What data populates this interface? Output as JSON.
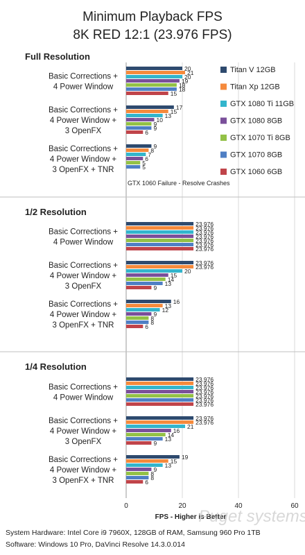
{
  "chart_data": {
    "type": "bar",
    "orientation": "horizontal",
    "title": "Minimum Playback FPS",
    "subtitle": "8K RED 12:1 (23.976 FPS)",
    "xlabel": "FPS - Higher is Better",
    "xlim": [
      0,
      60
    ],
    "xticks": [
      "0",
      "20",
      "40",
      "60"
    ],
    "grid": "vertical",
    "legend_position": "right",
    "series": [
      {
        "name": "Titan V 12GB",
        "color": "#2e4a6e"
      },
      {
        "name": "Titan Xp 12GB",
        "color": "#f58a3c"
      },
      {
        "name": "GTX 1080 Ti 11GB",
        "color": "#33b5cc"
      },
      {
        "name": "GTX 1080 8GB",
        "color": "#7a4f9a"
      },
      {
        "name": "GTX 1070 Ti 8GB",
        "color": "#93c147"
      },
      {
        "name": "GTX 1070 8GB",
        "color": "#4f7fc4"
      },
      {
        "name": "GTX 1060 6GB",
        "color": "#c0444a"
      }
    ],
    "panels": [
      {
        "title": "Full Resolution",
        "note": "GTX 1060 Failure - Resolve Crashes",
        "groups": [
          {
            "label": [
              "Basic Corrections +",
              "4 Power Window"
            ],
            "values": [
              20,
              21,
              20,
              19,
              18,
              18,
              15
            ]
          },
          {
            "label": [
              "Basic Corrections +",
              "4 Power Window +",
              "3 OpenFX"
            ],
            "values": [
              17,
              15,
              13,
              10,
              9,
              9,
              6
            ]
          },
          {
            "label": [
              "Basic Corrections +",
              "4 Power Window +",
              "3 OpenFX + TNR"
            ],
            "values": [
              9,
              8,
              7,
              6,
              5,
              5,
              0
            ]
          }
        ]
      },
      {
        "title": "1/2 Resolution",
        "groups": [
          {
            "label": [
              "Basic Corrections +",
              "4 Power Window"
            ],
            "values": [
              23.976,
              23.976,
              23.976,
              23.976,
              23.976,
              23.976,
              23.976
            ]
          },
          {
            "label": [
              "Basic Corrections +",
              "4 Power Window +",
              "3 OpenFX"
            ],
            "values": [
              23.976,
              23.976,
              20,
              15,
              14,
              13,
              9
            ]
          },
          {
            "label": [
              "Basic Corrections +",
              "4 Power Window +",
              "3 OpenFX + TNR"
            ],
            "values": [
              16,
              13,
              12,
              9,
              8,
              8,
              6
            ]
          }
        ]
      },
      {
        "title": "1/4 Resolution",
        "groups": [
          {
            "label": [
              "Basic Corrections +",
              "4 Power Window"
            ],
            "values": [
              23.976,
              23.976,
              23.976,
              23.976,
              23.976,
              23.976,
              23.976
            ]
          },
          {
            "label": [
              "Basic Corrections +",
              "4 Power Window +",
              "3 OpenFX"
            ],
            "values": [
              23.976,
              23.976,
              21,
              16,
              14,
              13,
              9
            ]
          },
          {
            "label": [
              "Basic Corrections +",
              "4 Power Window +",
              "3 OpenFX + TNR"
            ],
            "values": [
              19,
              15,
              13,
              9,
              8,
              8,
              6
            ]
          }
        ]
      }
    ],
    "footer": [
      "System Hardware: Intel Core i9 7960X,  128GB of RAM, Samsung 960 Pro 1TB",
      "Software: Windows 10 Pro, DaVinci Resolve 14.3.0.014"
    ],
    "watermark": "Puget systems"
  }
}
